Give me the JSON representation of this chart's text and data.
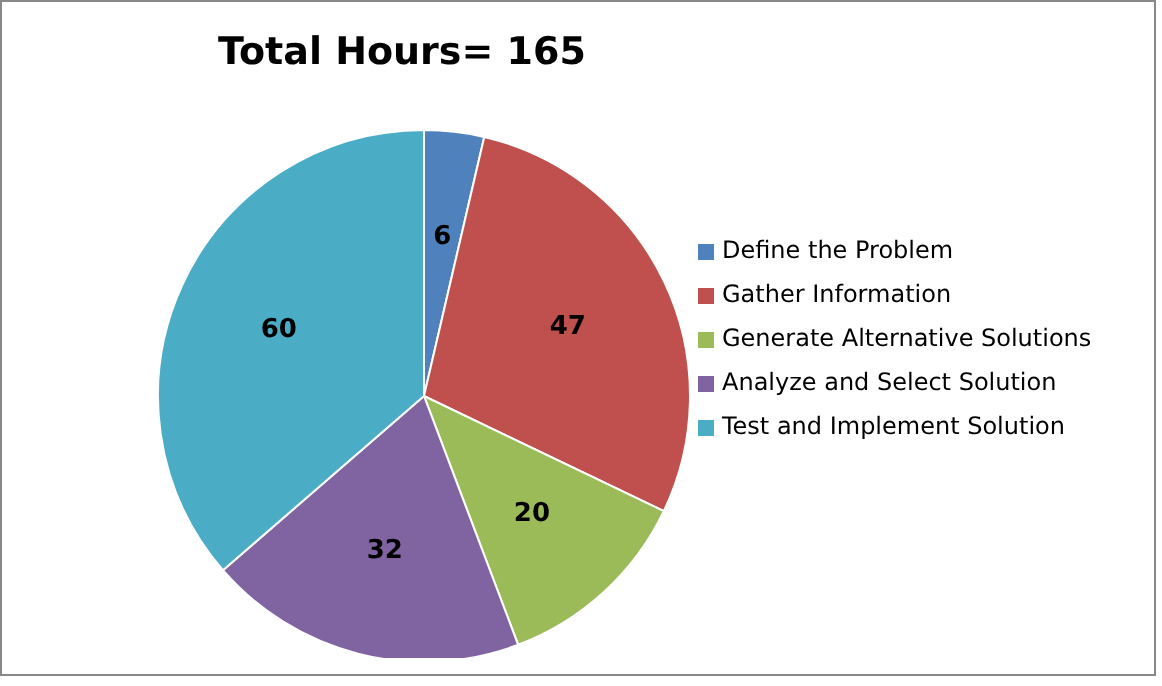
{
  "chart_data": {
    "type": "pie",
    "title": "Total Hours= 165",
    "categories": [
      "Define the Problem",
      "Gather Information",
      "Generate Alternative Solutions",
      "Analyze and Select Solution",
      "Test and Implement Solution"
    ],
    "values": [
      6,
      47,
      20,
      32,
      60
    ],
    "colors": [
      "#4f81bd",
      "#c0504d",
      "#9bbb59",
      "#8064a2",
      "#4bacc6"
    ],
    "data_labels": true,
    "legend": "right"
  }
}
